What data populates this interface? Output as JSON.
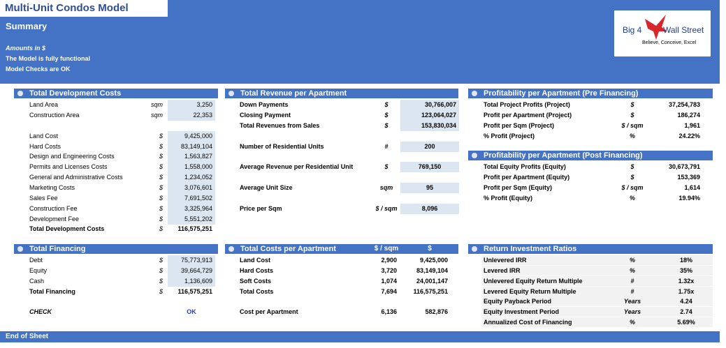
{
  "header": {
    "title": "Multi-Unit Condos Model",
    "subtitle": "Summary",
    "notes": [
      "Amounts in $",
      "The Model is fully functional",
      "Model Checks are OK"
    ]
  },
  "logo": {
    "brand_left": "Big 4",
    "brand_right": "Wall Street",
    "tagline": "Believe, Conceive, Excel"
  },
  "sections": [
    {
      "title": "Total Development Costs",
      "rows": [
        {
          "label": "Land Area",
          "unit": "sqm",
          "value": "3,250"
        },
        {
          "label": "Construction Area",
          "unit": "sqm",
          "value": "22,353"
        },
        {
          "label": "Land Cost",
          "unit": "$",
          "value": "9,425,000"
        },
        {
          "label": "Hard Costs",
          "unit": "$",
          "value": "83,149,104"
        },
        {
          "label": "Design and Engineering Costs",
          "unit": "$",
          "value": "1,563,827"
        },
        {
          "label": "Permits and Licenses Costs",
          "unit": "$",
          "value": "1,558,000"
        },
        {
          "label": "General and Administrative Costs",
          "unit": "$",
          "value": "1,234,052"
        },
        {
          "label": "Marketing Costs",
          "unit": "$",
          "value": "3,076,601"
        },
        {
          "label": "Sales Fee",
          "unit": "$",
          "value": "7,691,502"
        },
        {
          "label": "Construction Fee",
          "unit": "$",
          "value": "3,325,964"
        },
        {
          "label": "Development Fee",
          "unit": "$",
          "value": "5,551,202"
        },
        {
          "label": "Total Development Costs",
          "unit": "$",
          "value": "116,575,251"
        }
      ]
    },
    {
      "title": "Total Financing",
      "rows": [
        {
          "label": "Debt",
          "unit": "$",
          "value": "75,773,913"
        },
        {
          "label": "Equity",
          "unit": "$",
          "value": "39,664,729"
        },
        {
          "label": "Cash",
          "unit": "$",
          "value": "1,136,609"
        },
        {
          "label": "Total Financing",
          "unit": "$",
          "value": "116,575,251"
        },
        {
          "label": "CHECK",
          "value": "OK"
        }
      ]
    },
    {
      "title": "Total Revenue per Apartment",
      "rows": [
        {
          "label": "Down Payments",
          "unit": "$",
          "value": "30,766,007"
        },
        {
          "label": "Closing Payment",
          "unit": "$",
          "value": "123,064,027"
        },
        {
          "label": "Total Revenues from Sales",
          "unit": "$",
          "value": "153,830,034"
        },
        {
          "label": "Number of Residential Units",
          "unit": "#",
          "value": "200"
        },
        {
          "label": "Average Revenue per Residential Unit",
          "unit": "$",
          "value": "769,150"
        },
        {
          "label": "Average Unit Size",
          "unit": "sqm",
          "value": "95"
        },
        {
          "label": "Price per Sqm",
          "unit": "$ / sqm",
          "value": "8,096"
        }
      ]
    },
    {
      "title": "Total Costs per Apartment",
      "columns": [
        "$ / sqm",
        "$"
      ],
      "rows": [
        {
          "label": "Land Cost",
          "per_sqm": "2,900",
          "total": "9,425,000"
        },
        {
          "label": "Hard Costs",
          "per_sqm": "3,720",
          "total": "83,149,104"
        },
        {
          "label": "Soft Costs",
          "per_sqm": "1,074",
          "total": "24,001,147"
        },
        {
          "label": "Total Costs",
          "per_sqm": "7,694",
          "total": "116,575,251"
        },
        {
          "label": "Cost per Apartment",
          "per_sqm": "6,136",
          "total": "582,876"
        }
      ]
    },
    {
      "title": "Profitability per Apartment (Pre Financing)",
      "rows": [
        {
          "label": "Total Project Profits (Project)",
          "unit": "$",
          "value": "37,254,783"
        },
        {
          "label": "Profit per Apartment (Project)",
          "unit": "$",
          "value": "186,274"
        },
        {
          "label": "Profit per Sqm (Project)",
          "unit": "$ / sqm",
          "value": "1,961"
        },
        {
          "label": "% Profit (Project)",
          "unit": "%",
          "value": "24.22%"
        }
      ]
    },
    {
      "title": "Profitability per Apartment (Post Financing)",
      "rows": [
        {
          "label": "Total Equity Profits (Equity)",
          "unit": "$",
          "value": "30,673,791"
        },
        {
          "label": "Profit per Apartment (Equity)",
          "unit": "$",
          "value": "153,369"
        },
        {
          "label": "Profit per Sqm (Equity)",
          "unit": "$ / sqm",
          "value": "1,614"
        },
        {
          "label": "% Profit (Equity)",
          "unit": "%",
          "value": "19.94%"
        }
      ]
    },
    {
      "title": "Return Investment Ratios",
      "rows": [
        {
          "label": "Unlevered IRR",
          "unit": "%",
          "value": "18%"
        },
        {
          "label": "Levered IRR",
          "unit": "%",
          "value": "35%"
        },
        {
          "label": "Unlevered Equity Return Multiple",
          "unit": "#",
          "value": "1.32x"
        },
        {
          "label": "Levered Equity Return Multiple",
          "unit": "#",
          "value": "1.75x"
        },
        {
          "label": "Equity Payback Period",
          "unit": "Years",
          "value": "4.24"
        },
        {
          "label": "Equity Investment Period",
          "unit": "Years",
          "value": "2.74"
        },
        {
          "label": "Annualized Cost of Financing",
          "unit": "%",
          "value": "5.69%"
        }
      ]
    }
  ],
  "footer": "End of Sheet"
}
